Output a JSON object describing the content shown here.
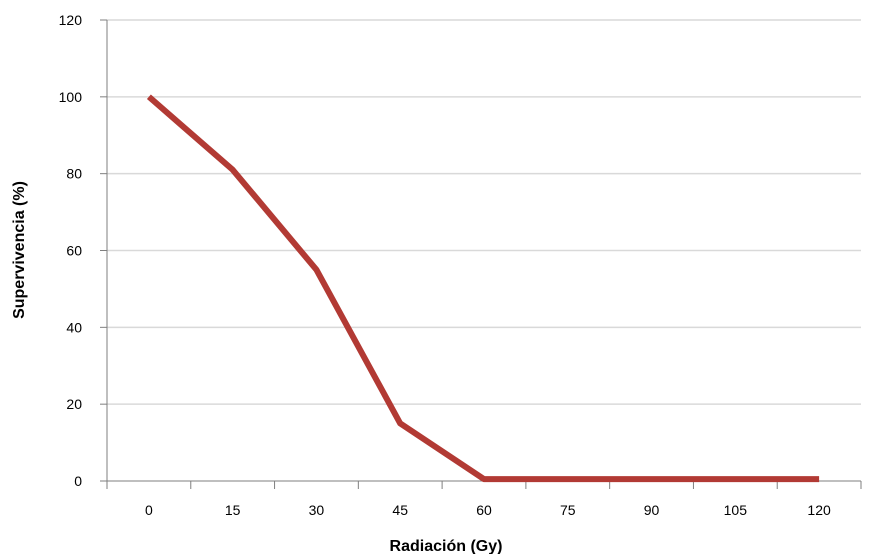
{
  "colors": {
    "line": "#b23a34",
    "grid": "#d9d9d9",
    "axis": "#7f7f7f",
    "background": "#ffffff"
  },
  "chart_data": {
    "type": "line",
    "title": "",
    "xlabel": "Radiación (Gy)",
    "ylabel": "Supervivencia (%)",
    "categories": [
      "0",
      "15",
      "30",
      "45",
      "60",
      "75",
      "90",
      "105",
      "120"
    ],
    "x_tick_labels": [
      "0",
      "15",
      "30",
      "45",
      "60",
      "75",
      "90",
      "105",
      "120"
    ],
    "y_tick_labels": [
      "0",
      "20",
      "40",
      "60",
      "80",
      "100",
      "120"
    ],
    "ylim": [
      0,
      120
    ],
    "y_ticks": [
      0,
      20,
      40,
      60,
      80,
      100,
      120
    ],
    "grid": true,
    "legend": "none",
    "series": [
      {
        "values": [
          100,
          81,
          55,
          15,
          0.5,
          0.5,
          0.5,
          0.5,
          0.5
        ]
      }
    ]
  }
}
